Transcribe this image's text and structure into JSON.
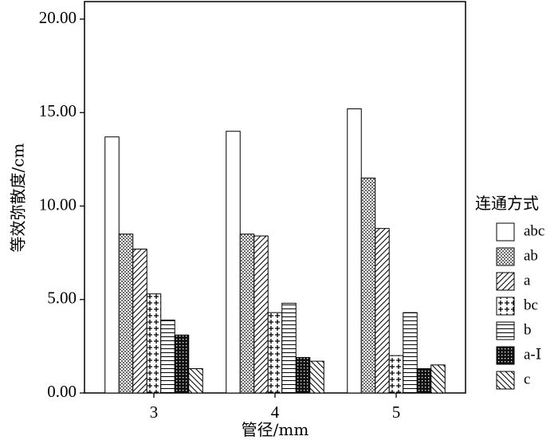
{
  "chart_data": {
    "type": "bar",
    "title": "",
    "xlabel": "管径/mm",
    "ylabel": "等效弥散度/cm",
    "ylim": [
      0,
      20
    ],
    "yticks": [
      "0.00",
      "5.00",
      "10.00",
      "15.00",
      "20.00"
    ],
    "categories": [
      "3",
      "4",
      "5"
    ],
    "legend_title": "连通方式",
    "legend_position": "right",
    "series": [
      {
        "name": "abc",
        "pattern": "empty",
        "values": [
          13.7,
          14.0,
          15.2
        ]
      },
      {
        "name": "ab",
        "pattern": "dots",
        "values": [
          8.5,
          8.5,
          11.5
        ]
      },
      {
        "name": "a",
        "pattern": "diag-up",
        "values": [
          7.7,
          8.4,
          8.8
        ]
      },
      {
        "name": "bc",
        "pattern": "plus",
        "values": [
          5.3,
          4.3,
          2.0
        ]
      },
      {
        "name": "b",
        "pattern": "horizontal",
        "values": [
          3.9,
          4.8,
          4.3
        ]
      },
      {
        "name": "a-Ⅰ",
        "pattern": "dense-cross",
        "values": [
          3.1,
          1.9,
          1.3
        ]
      },
      {
        "name": "c",
        "pattern": "diag-down",
        "values": [
          1.3,
          1.7,
          1.5
        ]
      }
    ]
  }
}
